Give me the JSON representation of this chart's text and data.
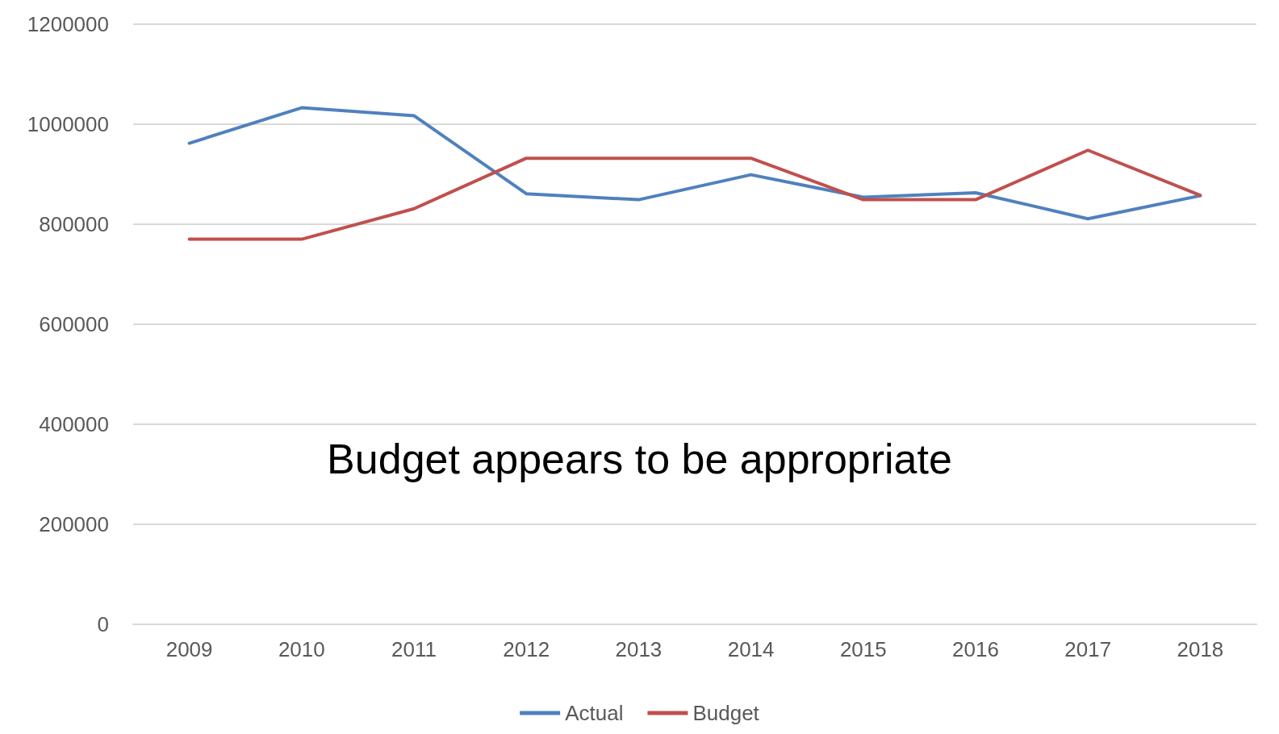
{
  "chart_data": {
    "type": "line",
    "categories": [
      "2009",
      "2010",
      "2011",
      "2012",
      "2013",
      "2014",
      "2015",
      "2016",
      "2017",
      "2018"
    ],
    "series": [
      {
        "name": "Actual",
        "color": "#4f81bd",
        "values": [
          962000,
          1033000,
          1017000,
          861000,
          849000,
          899000,
          854000,
          863000,
          811000,
          857000
        ]
      },
      {
        "name": "Budget",
        "color": "#c0504d",
        "values": [
          770000,
          770000,
          831000,
          932000,
          932000,
          932000,
          849000,
          849000,
          948000,
          858000
        ]
      }
    ],
    "ylim": [
      0,
      1200000
    ],
    "yticks": [
      0,
      200000,
      400000,
      600000,
      800000,
      1000000,
      1200000
    ],
    "grid": "y",
    "legend": "bottom",
    "marker": "none",
    "line_style": "solid",
    "annotations": [
      "Budget appears to be appropriate"
    ]
  }
}
